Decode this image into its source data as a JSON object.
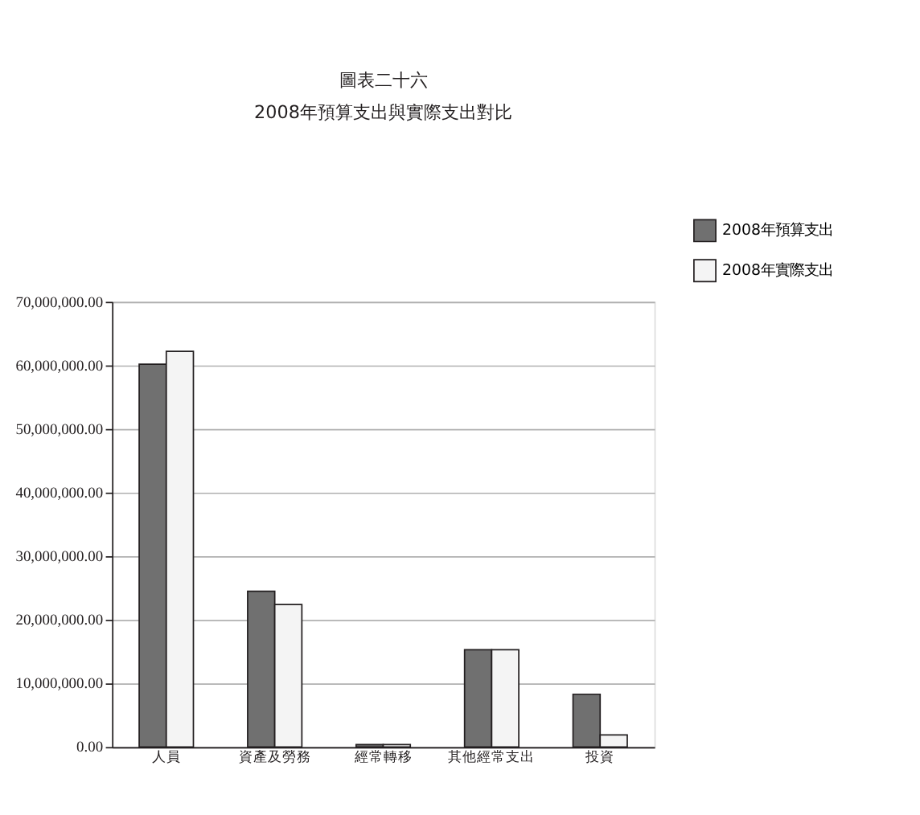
{
  "chart_data": {
    "type": "bar",
    "title": "圖表二十六",
    "subtitle": "2008年預算支出與實際支出對比",
    "categories": [
      "人員",
      "資產及勞務",
      "經常轉移",
      "其他經常支出",
      "投資"
    ],
    "series": [
      {
        "name": "2008年預算支出",
        "color": "#707070",
        "values": [
          60200000,
          24500000,
          400000,
          15300000,
          8300000
        ]
      },
      {
        "name": "2008年實際支出",
        "color": "#f4f4f4",
        "values": [
          62200000,
          22400000,
          400000,
          15300000,
          1900000
        ]
      }
    ],
    "ylim": [
      0,
      70000000
    ],
    "yticks": [
      {
        "value": 0,
        "label": "0.00"
      },
      {
        "value": 10000000,
        "label": "10,000,000.00"
      },
      {
        "value": 20000000,
        "label": "20,000,000.00"
      },
      {
        "value": 30000000,
        "label": "30,000,000.00"
      },
      {
        "value": 40000000,
        "label": "40,000,000.00"
      },
      {
        "value": 50000000,
        "label": "50,000,000.00"
      },
      {
        "value": 60000000,
        "label": "60,000,000.00"
      },
      {
        "value": 70000000,
        "label": "70,000,000.00"
      }
    ],
    "grid": "y",
    "legend": "top right"
  }
}
